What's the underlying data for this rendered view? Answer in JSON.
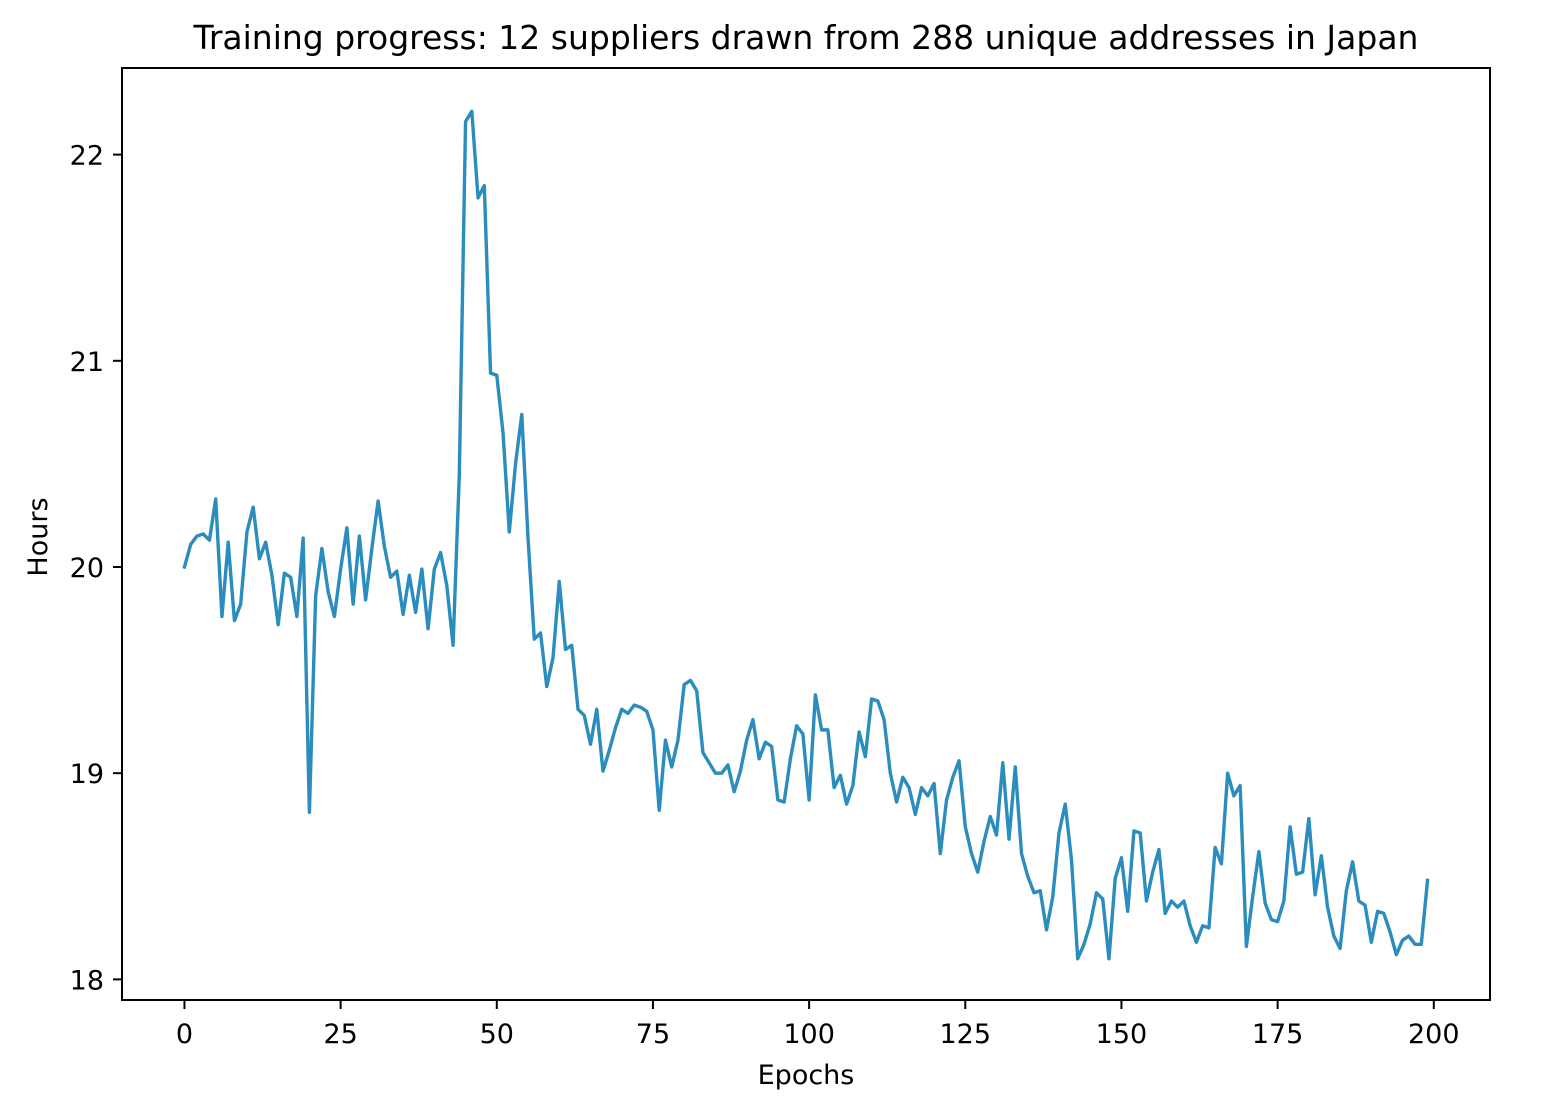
{
  "chart_data": {
    "type": "line",
    "title": "Training progress: 12 suppliers drawn from 288 unique addresses in Japan",
    "xlabel": "Epochs",
    "ylabel": "Hours",
    "xlim": [
      -10,
      209
    ],
    "ylim": [
      17.9,
      22.42
    ],
    "xticks": [
      0,
      25,
      50,
      75,
      100,
      125,
      150,
      175,
      200
    ],
    "yticks": [
      18,
      19,
      20,
      21,
      22
    ],
    "grid": false,
    "series": [
      {
        "color": "#2b8cbe",
        "x": [
          0,
          1,
          2,
          3,
          4,
          5,
          6,
          7,
          8,
          9,
          10,
          11,
          12,
          13,
          14,
          15,
          16,
          17,
          18,
          19,
          20,
          21,
          22,
          23,
          24,
          25,
          26,
          27,
          28,
          29,
          30,
          31,
          32,
          33,
          34,
          35,
          36,
          37,
          38,
          39,
          40,
          41,
          42,
          43,
          44,
          45,
          46,
          47,
          48,
          49,
          50,
          51,
          52,
          53,
          54,
          55,
          56,
          57,
          58,
          59,
          60,
          61,
          62,
          63,
          64,
          65,
          66,
          67,
          68,
          69,
          70,
          71,
          72,
          73,
          74,
          75,
          76,
          77,
          78,
          79,
          80,
          81,
          82,
          83,
          84,
          85,
          86,
          87,
          88,
          89,
          90,
          91,
          92,
          93,
          94,
          95,
          96,
          97,
          98,
          99,
          100,
          101,
          102,
          103,
          104,
          105,
          106,
          107,
          108,
          109,
          110,
          111,
          112,
          113,
          114,
          115,
          116,
          117,
          118,
          119,
          120,
          121,
          122,
          123,
          124,
          125,
          126,
          127,
          128,
          129,
          130,
          131,
          132,
          133,
          134,
          135,
          136,
          137,
          138,
          139,
          140,
          141,
          142,
          143,
          144,
          145,
          146,
          147,
          148,
          149,
          150,
          151,
          152,
          153,
          154,
          155,
          156,
          157,
          158,
          159,
          160,
          161,
          162,
          163,
          164,
          165,
          166,
          167,
          168,
          169,
          170,
          171,
          172,
          173,
          174,
          175,
          176,
          177,
          178,
          179,
          180,
          181,
          182,
          183,
          184,
          185,
          186,
          187,
          188,
          189,
          190,
          191,
          192,
          193,
          194,
          195,
          196,
          197,
          198,
          199
        ],
        "y": [
          20.0,
          20.11,
          20.15,
          20.16,
          20.13,
          20.33,
          19.76,
          20.12,
          19.74,
          19.82,
          20.17,
          20.29,
          20.04,
          20.12,
          19.96,
          19.72,
          19.97,
          19.95,
          19.76,
          20.14,
          18.81,
          19.86,
          20.09,
          19.88,
          19.76,
          19.99,
          20.19,
          19.82,
          20.15,
          19.84,
          20.09,
          20.32,
          20.1,
          19.95,
          19.98,
          19.77,
          19.96,
          19.78,
          19.99,
          19.7,
          19.99,
          20.07,
          19.91,
          19.62,
          20.45,
          22.16,
          22.21,
          21.79,
          21.85,
          20.94,
          20.93,
          20.65,
          20.17,
          20.5,
          20.74,
          20.14,
          19.65,
          19.68,
          19.42,
          19.56,
          19.93,
          19.6,
          19.62,
          19.31,
          19.28,
          19.14,
          19.31,
          19.01,
          19.11,
          19.22,
          19.31,
          19.29,
          19.33,
          19.32,
          19.3,
          19.21,
          18.82,
          19.16,
          19.03,
          19.16,
          19.43,
          19.45,
          19.4,
          19.1,
          19.05,
          19.0,
          19.0,
          19.04,
          18.91,
          19.01,
          19.16,
          19.26,
          19.07,
          19.15,
          19.13,
          18.87,
          18.86,
          19.07,
          19.23,
          19.19,
          18.87,
          19.38,
          19.21,
          19.21,
          18.93,
          18.99,
          18.85,
          18.94,
          19.2,
          19.08,
          19.36,
          19.35,
          19.26,
          19.0,
          18.86,
          18.98,
          18.93,
          18.8,
          18.93,
          18.89,
          18.95,
          18.61,
          18.87,
          18.98,
          19.06,
          18.74,
          18.61,
          18.52,
          18.67,
          18.79,
          18.7,
          19.05,
          18.68,
          19.03,
          18.61,
          18.5,
          18.42,
          18.43,
          18.24,
          18.4,
          18.71,
          18.85,
          18.58,
          18.1,
          18.17,
          18.27,
          18.42,
          18.39,
          18.1,
          18.49,
          18.59,
          18.33,
          18.72,
          18.71,
          18.38,
          18.52,
          18.63,
          18.32,
          18.38,
          18.35,
          18.38,
          18.26,
          18.18,
          18.26,
          18.25,
          18.64,
          18.56,
          19.0,
          18.89,
          18.94,
          18.16,
          18.4,
          18.62,
          18.37,
          18.29,
          18.28,
          18.38,
          18.74,
          18.51,
          18.52,
          18.78,
          18.41,
          18.6,
          18.35,
          18.21,
          18.15,
          18.43,
          18.57,
          18.38,
          18.36,
          18.18,
          18.33,
          18.32,
          18.23,
          18.12,
          18.19,
          18.21,
          18.17,
          18.17,
          18.48
        ]
      }
    ]
  }
}
